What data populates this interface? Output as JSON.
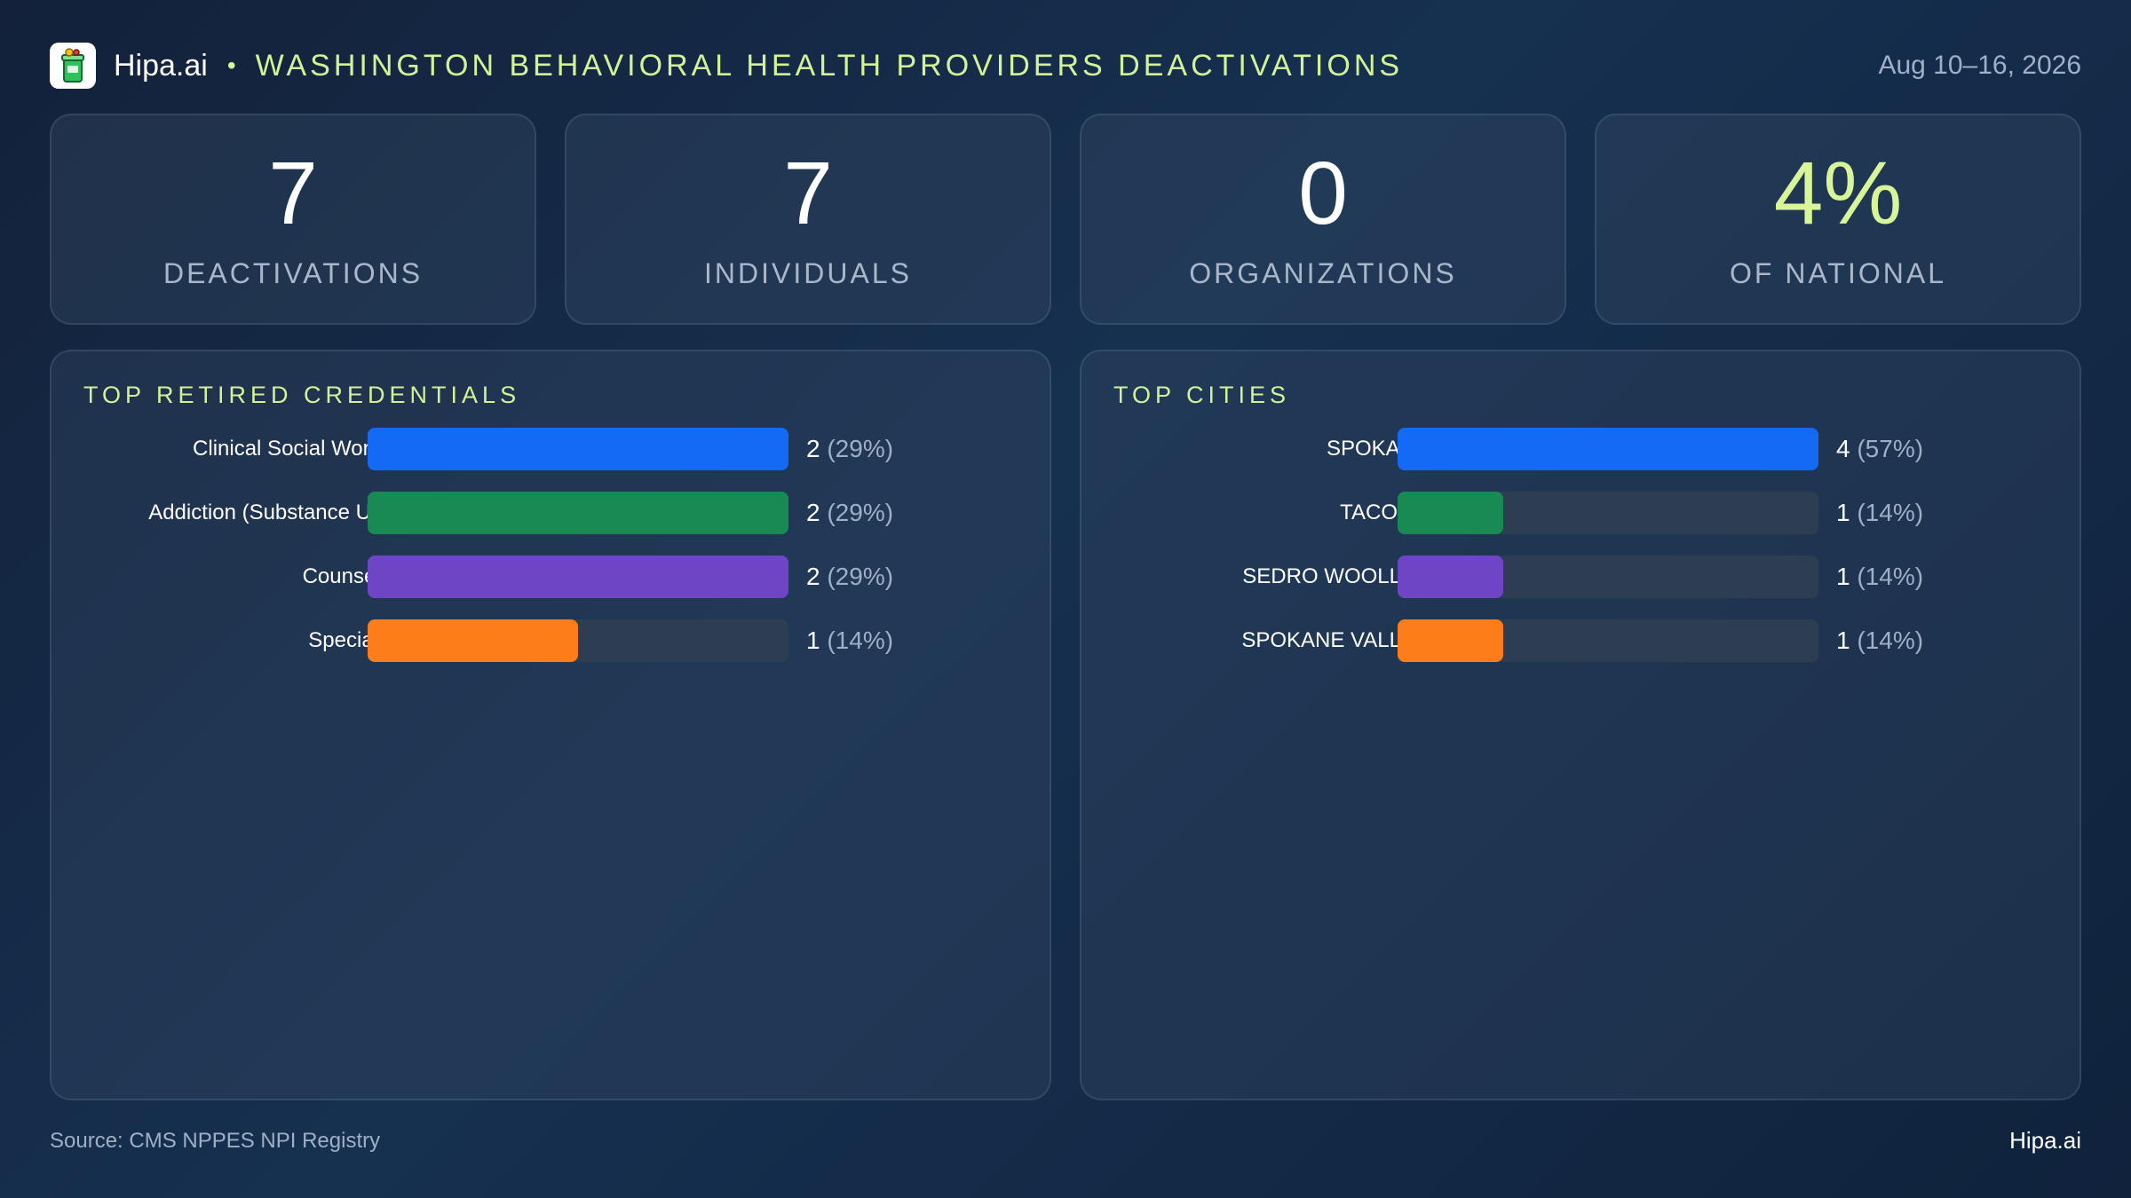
{
  "header": {
    "brand": "Hipa.ai",
    "separator": "•",
    "title": "WASHINGTON  BEHAVIORAL  HEALTH  PROVIDERS  DEACTIVATIONS",
    "date_range": "Aug 10–16, 2026",
    "logo_icon": "medication-cup-icon"
  },
  "kpis": [
    {
      "value": "7",
      "label": "DEACTIVATIONS"
    },
    {
      "value": "7",
      "label": "INDIVIDUALS"
    },
    {
      "value": "0",
      "label": "ORGANIZATIONS"
    },
    {
      "value": "4%",
      "label": "OF NATIONAL"
    }
  ],
  "colors": {
    "accent": "#d8f59a",
    "blue": "#1469f5",
    "green": "#1a8a55",
    "purple": "#6e45c4",
    "orange": "#fd7d1a",
    "track": "#2e3e52"
  },
  "chart_data": [
    {
      "type": "bar",
      "orientation": "horizontal",
      "title": "TOP RETIRED CREDENTIALS",
      "categories": [
        "Clinical Social Worker",
        "Addiction (Substance Us...",
        "Counselor",
        "Specialist"
      ],
      "values": [
        2,
        2,
        2,
        1
      ],
      "value_labels": [
        "2",
        "2",
        "2",
        "1"
      ],
      "percent_labels": [
        "(29%)",
        "(29%)",
        "(29%)",
        "(14%)"
      ],
      "bar_colors": [
        "#1469f5",
        "#1a8a55",
        "#6e45c4",
        "#fd7d1a"
      ],
      "xlim": [
        0,
        2
      ]
    },
    {
      "type": "bar",
      "orientation": "horizontal",
      "title": "TOP CITIES",
      "categories": [
        "SPOKANE",
        "TACOMA",
        "SEDRO WOOLLEY",
        "SPOKANE VALLEY"
      ],
      "values": [
        4,
        1,
        1,
        1
      ],
      "value_labels": [
        "4",
        "1",
        "1",
        "1"
      ],
      "percent_labels": [
        "(57%)",
        "(14%)",
        "(14%)",
        "(14%)"
      ],
      "bar_colors": [
        "#1469f5",
        "#1a8a55",
        "#6e45c4",
        "#fd7d1a"
      ],
      "xlim": [
        0,
        4
      ]
    }
  ],
  "footer": {
    "source": "Source: CMS NPPES NPI Registry",
    "brand": "Hipa.ai"
  }
}
